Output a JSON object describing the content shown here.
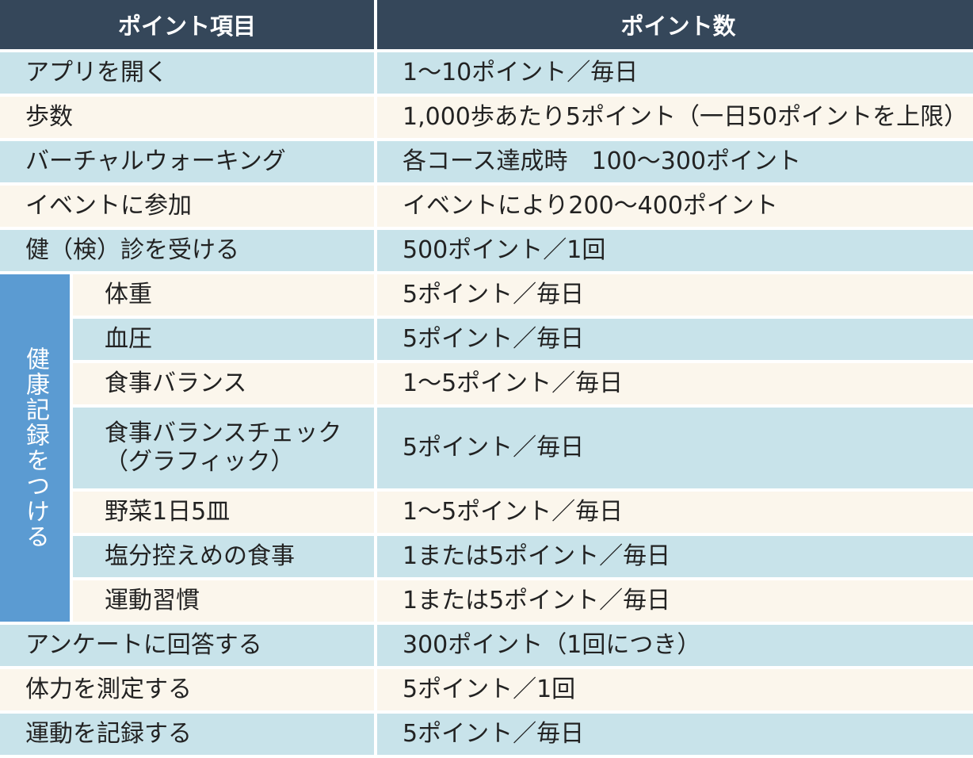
{
  "header": {
    "item": "ポイント項目",
    "points": "ポイント数"
  },
  "group_label": "健康記録をつける",
  "rows": [
    {
      "item": "アプリを開く",
      "points": "1〜10ポイント／毎日"
    },
    {
      "item": "歩数",
      "points": "1,000歩あたり5ポイント（一日50ポイントを上限）"
    },
    {
      "item": "バーチャルウォーキング",
      "points": "各コース達成時　100〜300ポイント"
    },
    {
      "item": "イベントに参加",
      "points": "イベントにより200〜400ポイント"
    },
    {
      "item": "健（検）診を受ける",
      "points": "500ポイント／1回"
    },
    {
      "item": "体重",
      "points": "5ポイント／毎日"
    },
    {
      "item": "血圧",
      "points": "5ポイント／毎日"
    },
    {
      "item": "食事バランス",
      "points": "1〜5ポイント／毎日"
    },
    {
      "item": "食事バランスチェック\n（グラフィック）",
      "points": "5ポイント／毎日"
    },
    {
      "item": "野菜1日5皿",
      "points": "1〜5ポイント／毎日"
    },
    {
      "item": "塩分控えめの食事",
      "points": "1または5ポイント／毎日"
    },
    {
      "item": "運動習慣",
      "points": "1または5ポイント／毎日"
    },
    {
      "item": "アンケートに回答する",
      "points": "300ポイント（1回につき）"
    },
    {
      "item": "体力を測定する",
      "points": "5ポイント／1回"
    },
    {
      "item": "運動を記録する",
      "points": "5ポイント／毎日"
    }
  ],
  "colors": {
    "header_bg": "#35475a",
    "row_blue": "#c8e3ea",
    "row_cream": "#fbf6ec",
    "group_bg": "#5b9bd2"
  }
}
